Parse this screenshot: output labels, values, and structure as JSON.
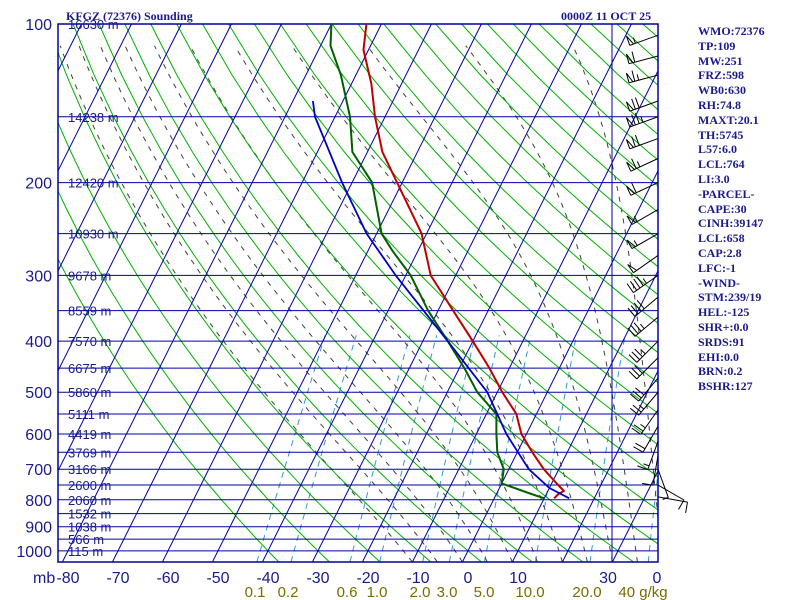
{
  "header": {
    "left_title": "KFGZ (72376) Sounding",
    "right_title": "0000Z 11 OCT 25"
  },
  "colors": {
    "frame": "#0000a0",
    "temperature": "#c00000",
    "dewpoint": "#006000",
    "parcel": "#0000c0",
    "dry_adiabat": "#00b000",
    "moist_adiabat": "#404040",
    "mixing_ratio": "#3399cc",
    "axis_text": "#1a1a8c",
    "mixing_ratio_text": "#7a6a00"
  },
  "side_panel": [
    "WMO:72376",
    "TP:109",
    "MW:251",
    "FRZ:598",
    "WB0:630",
    "RH:74.8",
    "MAXT:20.1",
    "TH:5745",
    "L57:6.0",
    "LCL:764",
    "LI:3.0",
    "-PARCEL-",
    "CAPE:30",
    "CINH:39147",
    "LCL:658",
    "CAP:2.8",
    "LFC:-1",
    "-WIND-",
    "STM:239/19",
    "HEL:-125",
    "SHR+:0.0",
    "SRDS:91",
    "EHI:0.0",
    "BRN:0.2",
    "BSHR:127"
  ],
  "chart_data": {
    "type": "skew-t",
    "title": "KFGZ (72376) Sounding",
    "pressure_unit_label": "mb",
    "pressure_ticks": [
      100,
      200,
      300,
      400,
      500,
      600,
      700,
      800,
      900,
      1000
    ],
    "pressure_range": [
      100,
      1000
    ],
    "temperature_ticks": [
      -80,
      -70,
      -60,
      -50,
      -40,
      -30,
      -20,
      -10,
      0,
      10
    ],
    "height_labels": [
      {
        "p": 100,
        "label": "16630 m"
      },
      {
        "p": 150,
        "label": "14238 m"
      },
      {
        "p": 200,
        "label": "12420 m"
      },
      {
        "p": 250,
        "label": "10930 m"
      },
      {
        "p": 300,
        "label": "9678 m"
      },
      {
        "p": 350,
        "label": "8559 m"
      },
      {
        "p": 400,
        "label": "7570 m"
      },
      {
        "p": 450,
        "label": "6675 m"
      },
      {
        "p": 500,
        "label": "5860 m"
      },
      {
        "p": 550,
        "label": "5111 m"
      },
      {
        "p": 600,
        "label": "4419 m"
      },
      {
        "p": 650,
        "label": "3769 m"
      },
      {
        "p": 700,
        "label": "3166 m"
      },
      {
        "p": 750,
        "label": "2600 m"
      },
      {
        "p": 800,
        "label": "2060 m"
      },
      {
        "p": 850,
        "label": "1532 m"
      },
      {
        "p": 900,
        "label": "1038 m"
      },
      {
        "p": 950,
        "label": "566 m"
      },
      {
        "p": 1000,
        "label": "115 m"
      }
    ],
    "mixing_ratio_labels": [
      "0.1",
      "0.2",
      "0.6",
      "1.0",
      "2.0",
      "3.0",
      "5.0",
      "10.0",
      "20.0",
      "40 g/kg"
    ],
    "mixing_ratio_values": [
      0.1,
      0.2,
      0.6,
      1.0,
      2.0,
      3.0,
      5.0,
      10.0,
      20.0,
      40.0
    ],
    "right_axis_labels": [
      "30",
      "0"
    ],
    "series": [
      {
        "name": "temperature",
        "points": [
          {
            "p": 795,
            "t": 12
          },
          {
            "p": 780,
            "t": 12.4
          },
          {
            "p": 770,
            "t": 13.2
          },
          {
            "p": 745,
            "t": 11
          },
          {
            "p": 700,
            "t": 7
          },
          {
            "p": 650,
            "t": 3
          },
          {
            "p": 600,
            "t": -1
          },
          {
            "p": 550,
            "t": -4
          },
          {
            "p": 500,
            "t": -9
          },
          {
            "p": 450,
            "t": -14
          },
          {
            "p": 400,
            "t": -20
          },
          {
            "p": 350,
            "t": -27
          },
          {
            "p": 300,
            "t": -35
          },
          {
            "p": 250,
            "t": -41
          },
          {
            "p": 200,
            "t": -51
          },
          {
            "p": 175,
            "t": -57
          },
          {
            "p": 150,
            "t": -62
          },
          {
            "p": 130,
            "t": -66
          },
          {
            "p": 112,
            "t": -71
          },
          {
            "p": 100,
            "t": -73
          }
        ]
      },
      {
        "name": "dewpoint",
        "points": [
          {
            "p": 795,
            "t": 10
          },
          {
            "p": 780,
            "t": 7
          },
          {
            "p": 745,
            "t": 0
          },
          {
            "p": 700,
            "t": -1
          },
          {
            "p": 650,
            "t": -4
          },
          {
            "p": 600,
            "t": -6
          },
          {
            "p": 550,
            "t": -8
          },
          {
            "p": 500,
            "t": -14
          },
          {
            "p": 450,
            "t": -19
          },
          {
            "p": 400,
            "t": -25
          },
          {
            "p": 350,
            "t": -32
          },
          {
            "p": 300,
            "t": -39
          },
          {
            "p": 270,
            "t": -45
          },
          {
            "p": 250,
            "t": -49
          },
          {
            "p": 200,
            "t": -56
          },
          {
            "p": 175,
            "t": -63
          },
          {
            "p": 150,
            "t": -67
          },
          {
            "p": 125,
            "t": -73
          },
          {
            "p": 110,
            "t": -78
          },
          {
            "p": 100,
            "t": -80
          }
        ]
      },
      {
        "name": "parcel",
        "points": [
          {
            "p": 795,
            "t": 15
          },
          {
            "p": 760,
            "t": 10
          },
          {
            "p": 700,
            "t": 4
          },
          {
            "p": 600,
            "t": -4
          },
          {
            "p": 500,
            "t": -12
          },
          {
            "p": 400,
            "t": -25
          },
          {
            "p": 300,
            "t": -42
          },
          {
            "p": 250,
            "t": -52
          },
          {
            "p": 200,
            "t": -62
          },
          {
            "p": 150,
            "t": -74
          },
          {
            "p": 140,
            "t": -76
          }
        ]
      }
    ],
    "wind_barbs": [
      {
        "p": 105,
        "dir": 250,
        "kt": 55
      },
      {
        "p": 115,
        "dir": 255,
        "kt": 60
      },
      {
        "p": 125,
        "dir": 255,
        "kt": 65
      },
      {
        "p": 140,
        "dir": 250,
        "kt": 70
      },
      {
        "p": 150,
        "dir": 250,
        "kt": 75
      },
      {
        "p": 165,
        "dir": 250,
        "kt": 70
      },
      {
        "p": 180,
        "dir": 245,
        "kt": 65
      },
      {
        "p": 200,
        "dir": 245,
        "kt": 60
      },
      {
        "p": 225,
        "dir": 240,
        "kt": 55
      },
      {
        "p": 250,
        "dir": 240,
        "kt": 55
      },
      {
        "p": 275,
        "dir": 235,
        "kt": 50
      },
      {
        "p": 300,
        "dir": 235,
        "kt": 45
      },
      {
        "p": 330,
        "dir": 230,
        "kt": 40
      },
      {
        "p": 360,
        "dir": 230,
        "kt": 38
      },
      {
        "p": 400,
        "dir": 225,
        "kt": 35
      },
      {
        "p": 430,
        "dir": 225,
        "kt": 32
      },
      {
        "p": 470,
        "dir": 220,
        "kt": 30
      },
      {
        "p": 500,
        "dir": 220,
        "kt": 28
      },
      {
        "p": 540,
        "dir": 215,
        "kt": 25
      },
      {
        "p": 580,
        "dir": 210,
        "kt": 20
      },
      {
        "p": 620,
        "dir": 200,
        "kt": 15
      },
      {
        "p": 660,
        "dir": 190,
        "kt": 10
      },
      {
        "p": 700,
        "dir": 160,
        "kt": 8
      },
      {
        "p": 750,
        "dir": 120,
        "kt": 10
      },
      {
        "p": 790,
        "dir": 100,
        "kt": 12
      }
    ]
  }
}
